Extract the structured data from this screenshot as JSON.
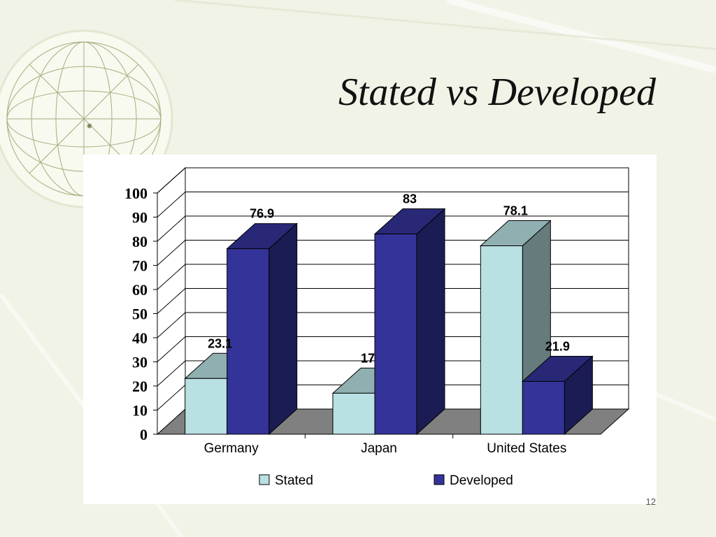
{
  "slide": {
    "title": "Stated vs Developed",
    "page_number": "12"
  },
  "chart_data": {
    "type": "bar",
    "style": "3d-clustered-column",
    "categories": [
      "Germany",
      "Japan",
      "United States"
    ],
    "series": [
      {
        "name": "Stated",
        "values": [
          23.1,
          17,
          78.1
        ],
        "labels": [
          "23.1",
          "17",
          "78.1"
        ],
        "color": "#b9e0e2"
      },
      {
        "name": "Developed",
        "values": [
          76.9,
          83,
          21.9
        ],
        "labels": [
          "76.9",
          "83",
          "21.9"
        ],
        "color": "#333399"
      }
    ],
    "ylim": [
      0,
      100
    ],
    "yticks": [
      "0",
      "10",
      "20",
      "30",
      "40",
      "50",
      "60",
      "70",
      "80",
      "90",
      "100"
    ],
    "grid": true,
    "legend": "bottom",
    "floor_color": "#808080"
  }
}
